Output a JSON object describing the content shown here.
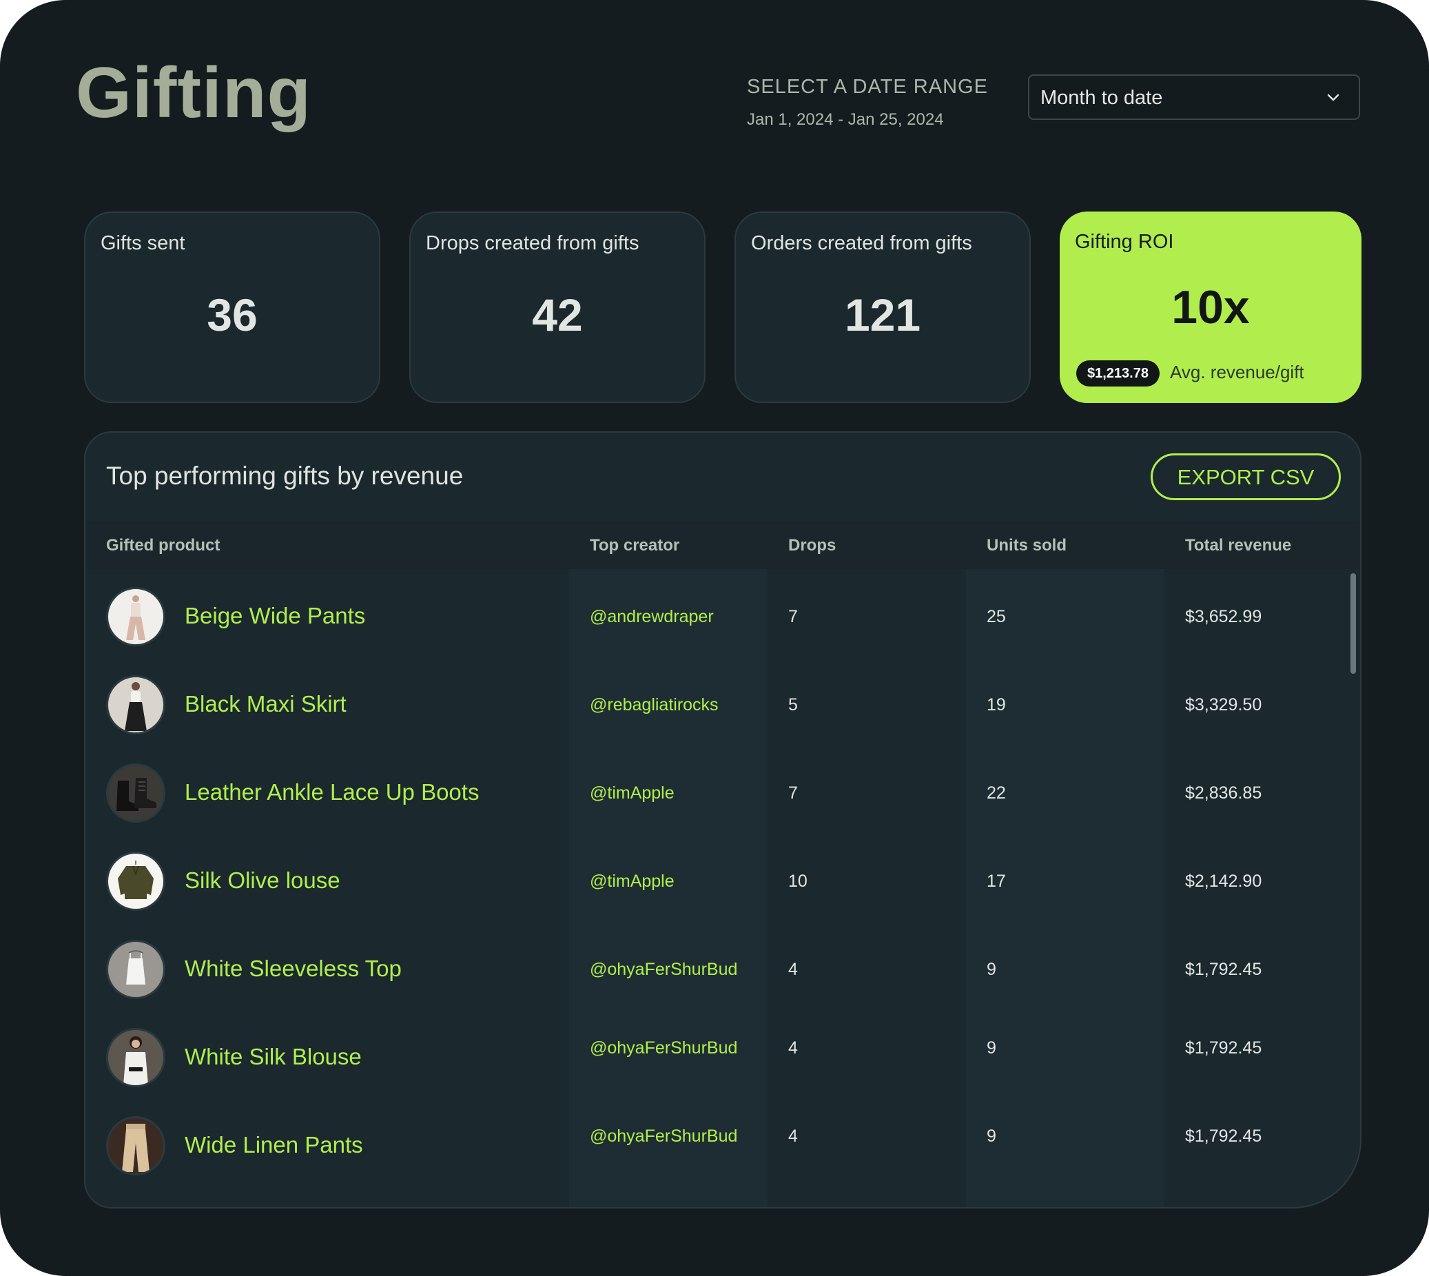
{
  "header": {
    "title": "Gifting",
    "date_label": "SELECT A DATE RANGE",
    "date_range": "Jan 1, 2024 - Jan 25, 2024",
    "select_value": "Month to date",
    "select_icon": "chevron-down-icon"
  },
  "stats": [
    {
      "label": "Gifts sent",
      "value": "36"
    },
    {
      "label": "Drops created from gifts",
      "value": "42"
    },
    {
      "label": "Orders created from gifts",
      "value": "121"
    }
  ],
  "roi": {
    "label": "Gifting ROI",
    "value": "10x",
    "badge": "$1,213.78",
    "sub": "Avg. revenue/gift",
    "color": "#b1ee4d"
  },
  "table": {
    "title": "Top performing gifts by revenue",
    "export_label": "EXPORT CSV",
    "headers": [
      "Gifted product",
      "Top creator",
      "Drops",
      "Units sold",
      "Total revenue"
    ],
    "rows": [
      {
        "product": "Beige Wide Pants",
        "creator": "@andrewdraper",
        "drops": "7",
        "units": "25",
        "revenue": "$3,652.99",
        "thumb": "beige-pants"
      },
      {
        "product": "Black Maxi Skirt",
        "creator": "@rebagliatirocks",
        "drops": "5",
        "units": "19",
        "revenue": "$3,329.50",
        "thumb": "black-skirt"
      },
      {
        "product": "Leather Ankle Lace Up Boots",
        "creator": "@timApple",
        "drops": "7",
        "units": "22",
        "revenue": "$2,836.85",
        "thumb": "boots"
      },
      {
        "product": "Silk Olive louse",
        "creator": "@timApple",
        "drops": "10",
        "units": "17",
        "revenue": "$2,142.90",
        "thumb": "olive-blouse"
      },
      {
        "product": "White Sleeveless Top",
        "creator": "@ohyaFerShurBud",
        "drops": "4",
        "units": "9",
        "revenue": "$1,792.45",
        "thumb": "white-top"
      },
      {
        "product": "White Silk Blouse",
        "creator": "@ohyaFerShurBud",
        "drops": "4",
        "units": "9",
        "revenue": "$1,792.45",
        "thumb": "white-blouse"
      },
      {
        "product": "Wide Linen Pants",
        "creator": "@ohyaFerShurBud",
        "drops": "4",
        "units": "9",
        "revenue": "$1,792.45",
        "thumb": "linen-pants"
      }
    ]
  },
  "colors": {
    "background": "#151c20",
    "card": "#1b282e",
    "accent": "#b1ee4d",
    "title": "#a3ad98"
  }
}
